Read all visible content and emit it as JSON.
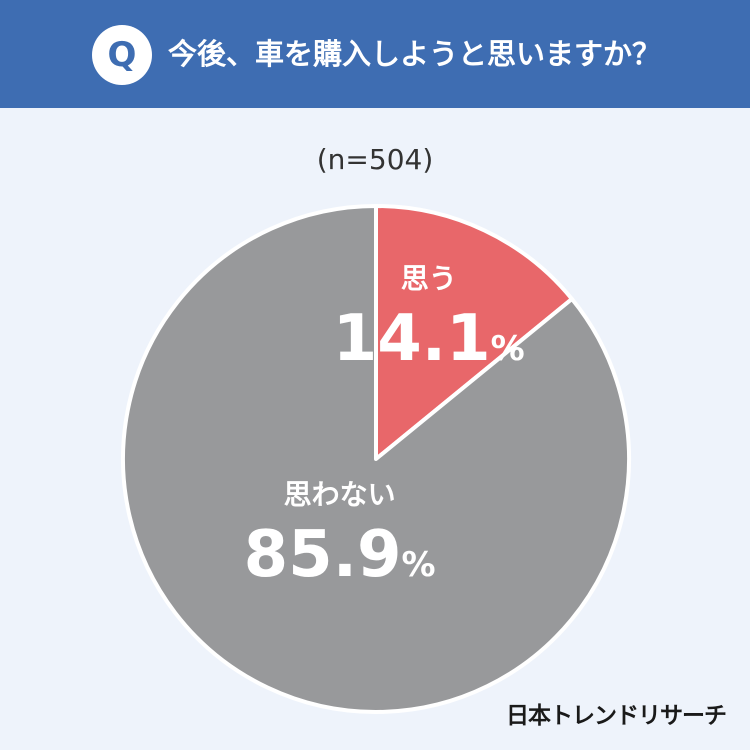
{
  "header": {
    "badge": "Q",
    "question": "今後、車を購入しようと思いますか？"
  },
  "chart_data": {
    "type": "pie",
    "sample_label": "(n=504)",
    "slices": [
      {
        "label": "思う",
        "value": 14.1,
        "display": "14.1",
        "unit": "%",
        "color": "#e8676a"
      },
      {
        "label": "思わない",
        "value": 85.9,
        "display": "85.9",
        "unit": "%",
        "color": "#98999b"
      }
    ]
  },
  "brand": "日本トレンドリサーチ"
}
